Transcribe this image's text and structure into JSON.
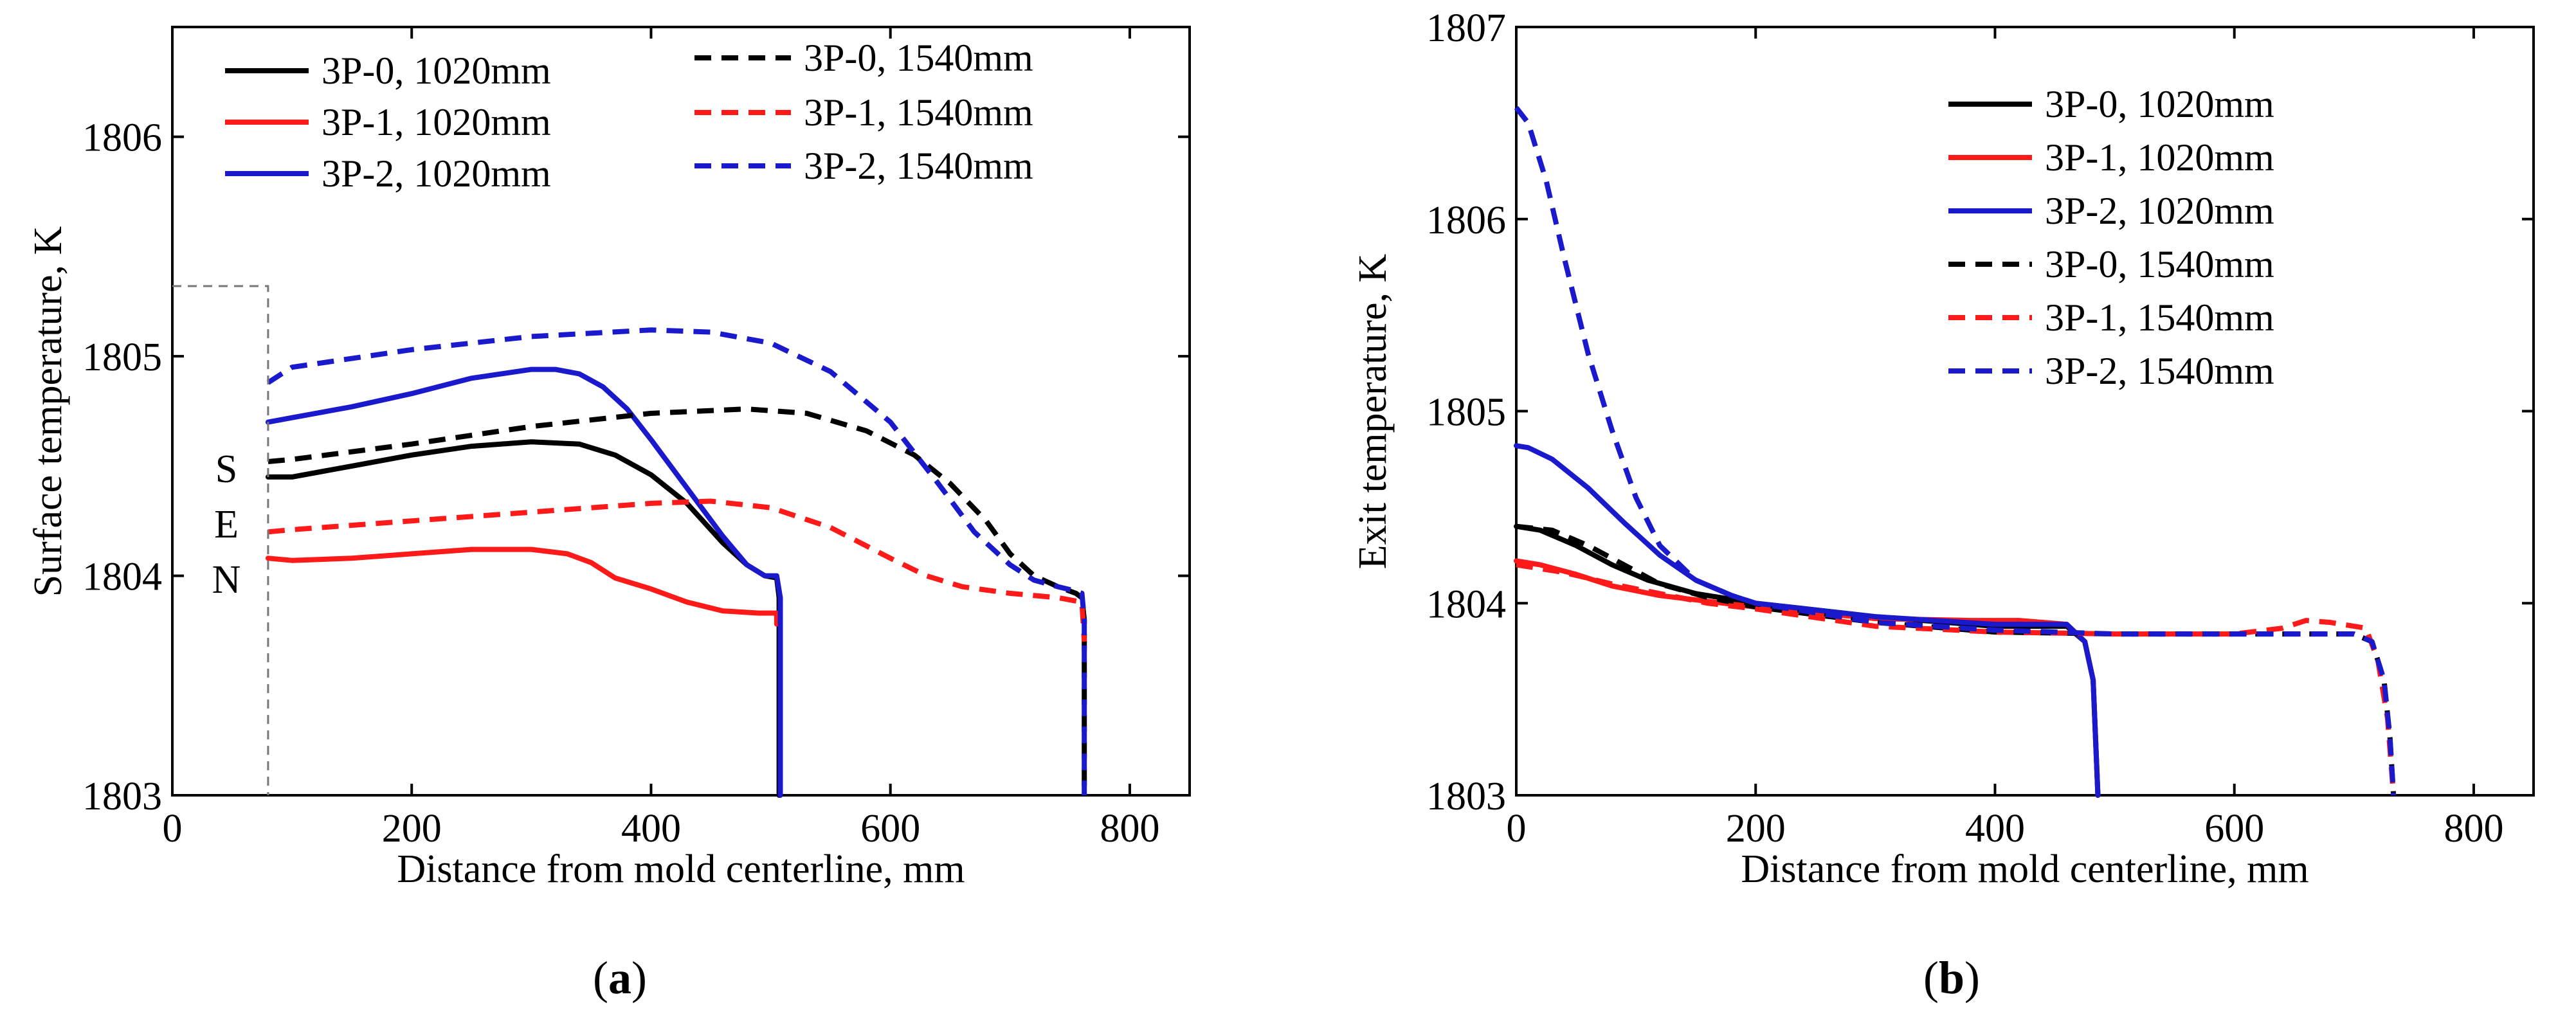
{
  "colors": {
    "black": "#000000",
    "red": "#ff1a1a",
    "blue": "#1a1acc",
    "sen_line": "#777777"
  },
  "chart_data": [
    {
      "type": "line",
      "panel_label": {
        "open": "(",
        "letter": "a",
        "close": ")"
      },
      "xlabel": "Distance from mold centerline, mm",
      "ylabel": "Surface  temperature, K",
      "xlim": [
        0,
        850
      ],
      "ylim": [
        1803,
        1806.5
      ],
      "xticks": [
        0,
        200,
        400,
        600,
        800
      ],
      "yticks": [
        1803,
        1804,
        1805,
        1806
      ],
      "annotation": {
        "text": [
          "S",
          "E",
          "N"
        ],
        "boundary_x": 80
      },
      "series": [
        {
          "name": "3P-0, 1020mm",
          "color": "#000000",
          "dash": false,
          "x": [
            80,
            100,
            150,
            200,
            250,
            300,
            340,
            370,
            400,
            430,
            460,
            480,
            495,
            505,
            507,
            507
          ],
          "y": [
            1804.45,
            1804.45,
            1804.5,
            1804.55,
            1804.59,
            1804.61,
            1804.6,
            1804.55,
            1804.46,
            1804.33,
            1804.15,
            1804.05,
            1804.0,
            1803.99,
            1803.9,
            1803.0
          ]
        },
        {
          "name": "3P-1, 1020mm",
          "color": "#ff1a1a",
          "dash": false,
          "x": [
            80,
            100,
            150,
            200,
            250,
            300,
            330,
            350,
            370,
            400,
            430,
            460,
            490,
            500,
            505,
            505
          ],
          "y": [
            1804.08,
            1804.07,
            1804.08,
            1804.1,
            1804.12,
            1804.12,
            1804.1,
            1804.06,
            1803.99,
            1803.94,
            1803.88,
            1803.84,
            1803.83,
            1803.83,
            1803.83,
            1803.78
          ]
        },
        {
          "name": "3P-2, 1020mm",
          "color": "#1a1acc",
          "dash": false,
          "x": [
            80,
            100,
            150,
            200,
            250,
            300,
            320,
            340,
            360,
            380,
            400,
            430,
            460,
            480,
            495,
            505,
            508,
            508
          ],
          "y": [
            1804.7,
            1804.72,
            1804.77,
            1804.83,
            1804.9,
            1804.94,
            1804.94,
            1804.92,
            1804.86,
            1804.76,
            1804.62,
            1804.4,
            1804.18,
            1804.05,
            1804.0,
            1804.0,
            1803.9,
            1803.0
          ]
        },
        {
          "name": "3P-0, 1540mm",
          "color": "#000000",
          "dash": true,
          "x": [
            80,
            100,
            200,
            300,
            400,
            480,
            530,
            580,
            620,
            650,
            680,
            700,
            720,
            740,
            755,
            760,
            762,
            762
          ],
          "y": [
            1804.52,
            1804.53,
            1804.6,
            1804.68,
            1804.74,
            1804.76,
            1804.74,
            1804.66,
            1804.55,
            1804.42,
            1804.25,
            1804.1,
            1804.0,
            1803.95,
            1803.92,
            1803.9,
            1803.8,
            1803.0
          ]
        },
        {
          "name": "3P-1, 1540mm",
          "color": "#ff1a1a",
          "dash": true,
          "x": [
            80,
            100,
            200,
            300,
            400,
            450,
            500,
            550,
            600,
            630,
            660,
            700,
            740,
            760,
            762
          ],
          "y": [
            1804.2,
            1804.21,
            1804.25,
            1804.29,
            1804.33,
            1804.34,
            1804.31,
            1804.22,
            1804.08,
            1804.0,
            1803.95,
            1803.92,
            1803.9,
            1803.88,
            1803.7
          ]
        },
        {
          "name": "3P-2, 1540mm",
          "color": "#1a1acc",
          "dash": true,
          "x": [
            80,
            100,
            200,
            300,
            400,
            450,
            500,
            550,
            600,
            640,
            670,
            700,
            720,
            740,
            755,
            760,
            762,
            762
          ],
          "y": [
            1804.88,
            1804.95,
            1805.03,
            1805.09,
            1805.12,
            1805.11,
            1805.06,
            1804.93,
            1804.7,
            1804.42,
            1804.2,
            1804.05,
            1803.98,
            1803.95,
            1803.93,
            1803.92,
            1803.8,
            1803.0
          ]
        }
      ]
    },
    {
      "type": "line",
      "panel_label": {
        "open": "(",
        "letter": "b",
        "close": ")"
      },
      "xlabel": "Distance from mold centerline, mm",
      "ylabel": "Exit  temperature, K",
      "xlim": [
        0,
        850
      ],
      "ylim": [
        1803,
        1807
      ],
      "xticks": [
        0,
        200,
        400,
        600,
        800
      ],
      "yticks": [
        1803,
        1804,
        1805,
        1806,
        1807
      ],
      "series": [
        {
          "name": "3P-0, 1020mm",
          "color": "#000000",
          "dash": false,
          "x": [
            0,
            20,
            50,
            80,
            110,
            150,
            200,
            300,
            400,
            460,
            475,
            482,
            484,
            486
          ],
          "y": [
            1804.4,
            1804.38,
            1804.3,
            1804.2,
            1804.12,
            1804.05,
            1804.0,
            1803.93,
            1803.88,
            1803.88,
            1803.8,
            1803.6,
            1803.3,
            1803.0
          ]
        },
        {
          "name": "3P-1, 1020mm",
          "color": "#ff1a1a",
          "dash": false,
          "x": [
            0,
            20,
            50,
            80,
            120,
            160,
            200,
            300,
            380,
            420,
            460,
            475,
            482,
            484,
            486
          ],
          "y": [
            1804.22,
            1804.2,
            1804.15,
            1804.09,
            1804.04,
            1804.01,
            1803.98,
            1803.92,
            1803.91,
            1803.91,
            1803.89,
            1803.8,
            1803.6,
            1803.3,
            1803.0
          ]
        },
        {
          "name": "3P-2, 1020mm",
          "color": "#1a1acc",
          "dash": false,
          "x": [
            0,
            10,
            30,
            60,
            90,
            120,
            150,
            180,
            200,
            300,
            400,
            460,
            475,
            482,
            484,
            486
          ],
          "y": [
            1804.82,
            1804.81,
            1804.75,
            1804.6,
            1804.42,
            1804.25,
            1804.12,
            1804.04,
            1804.0,
            1803.93,
            1803.89,
            1803.89,
            1803.8,
            1803.6,
            1803.3,
            1803.0
          ]
        },
        {
          "name": "3P-0, 1540mm",
          "color": "#000000",
          "dash": true,
          "x": [
            0,
            30,
            60,
            90,
            120,
            160,
            200,
            300,
            400,
            500,
            600,
            700,
            715,
            725,
            730,
            733
          ],
          "y": [
            1804.4,
            1804.38,
            1804.3,
            1804.2,
            1804.1,
            1804.03,
            1803.98,
            1803.9,
            1803.85,
            1803.84,
            1803.84,
            1803.84,
            1803.8,
            1803.6,
            1803.3,
            1803.0
          ]
        },
        {
          "name": "3P-1, 1540mm",
          "color": "#ff1a1a",
          "dash": true,
          "x": [
            0,
            40,
            80,
            120,
            160,
            200,
            300,
            400,
            500,
            600,
            640,
            660,
            680,
            710,
            720,
            728,
            733
          ],
          "y": [
            1804.2,
            1804.16,
            1804.1,
            1804.05,
            1804.0,
            1803.97,
            1803.88,
            1803.85,
            1803.84,
            1803.84,
            1803.87,
            1803.91,
            1803.9,
            1803.87,
            1803.7,
            1803.4,
            1803.0
          ]
        },
        {
          "name": "3P-2, 1540mm",
          "color": "#1a1acc",
          "dash": true,
          "x": [
            0,
            10,
            25,
            40,
            60,
            80,
            100,
            120,
            150,
            180,
            200,
            300,
            400,
            500,
            600,
            700,
            715,
            725,
            730,
            733
          ],
          "y": [
            1806.58,
            1806.5,
            1806.2,
            1805.8,
            1805.3,
            1804.9,
            1804.55,
            1804.3,
            1804.12,
            1804.04,
            1804.0,
            1803.9,
            1803.86,
            1803.84,
            1803.84,
            1803.84,
            1803.8,
            1803.6,
            1803.3,
            1803.0
          ]
        }
      ]
    }
  ]
}
